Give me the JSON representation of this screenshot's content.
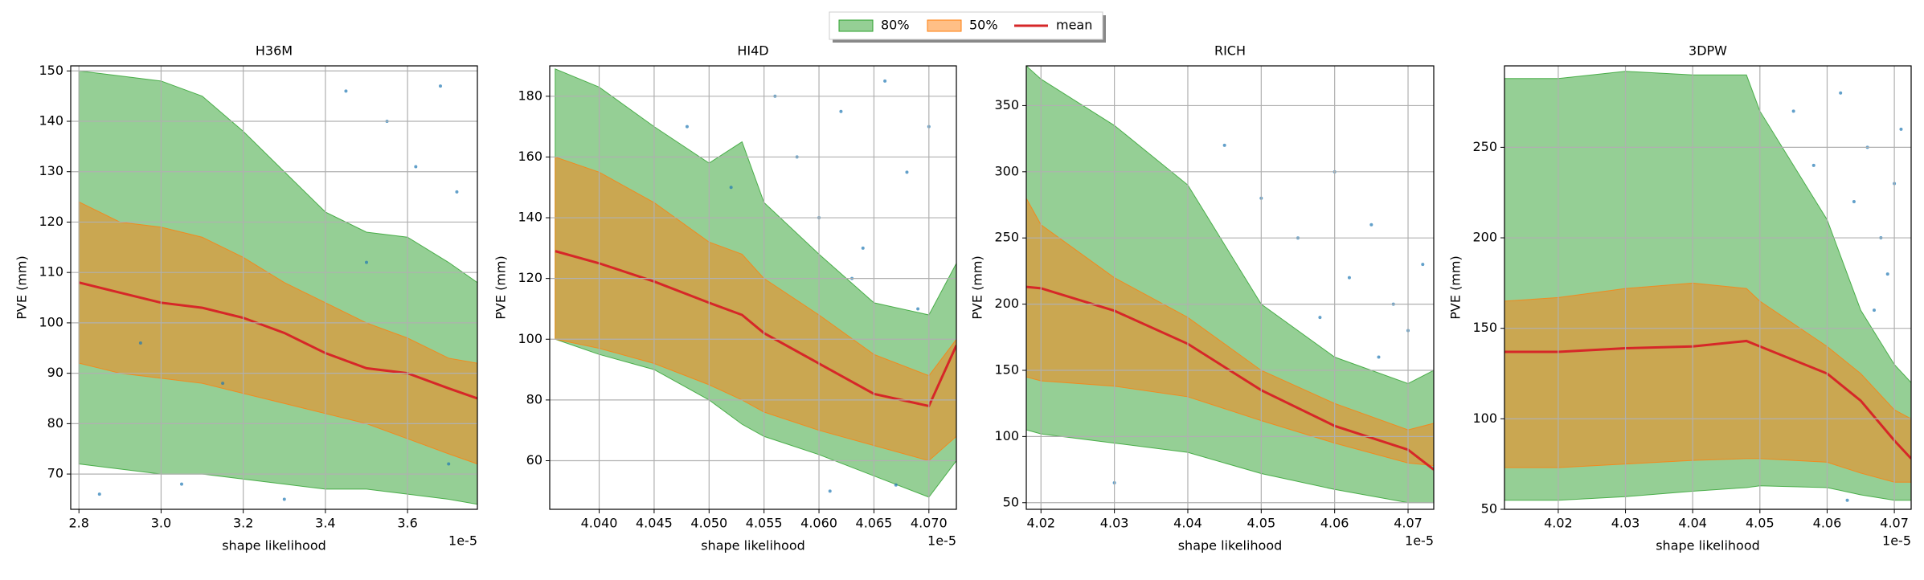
{
  "legend": {
    "position": "top",
    "entries": [
      {
        "name": "80%",
        "color": "#2ca02c"
      },
      {
        "name": "50%",
        "color": "#ff7f0e"
      },
      {
        "name": "mean",
        "color": "#d62728"
      }
    ]
  },
  "scatter_color": "#1f77b4",
  "chart_data": [
    {
      "type": "line",
      "title": "H36M",
      "xlabel": "shape likelihood",
      "ylabel": "PVE (mm)",
      "x_offset_label": "1e-5",
      "grid": true,
      "xlim": [
        2.78,
        3.77
      ],
      "ylim": [
        63,
        151
      ],
      "xticks": [
        2.8,
        {
          "value": 3,
          "label": "3.0"
        },
        3.2,
        3.4,
        3.6
      ],
      "yticks": [
        70,
        80,
        90,
        100,
        110,
        120,
        130,
        140,
        150
      ],
      "x": [
        2.8,
        2.9,
        3.0,
        3.1,
        3.2,
        3.3,
        3.4,
        3.5,
        3.6,
        3.7,
        3.77
      ],
      "band80": {
        "upper": [
          150,
          149,
          148,
          145,
          138,
          130,
          122,
          118,
          117,
          112,
          108
        ],
        "lower": [
          72,
          71,
          70,
          70,
          69,
          68,
          67,
          67,
          66,
          65,
          64
        ]
      },
      "band50": {
        "upper": [
          124,
          120,
          119,
          117,
          113,
          108,
          104,
          100,
          97,
          93,
          92
        ],
        "lower": [
          92,
          90,
          89,
          88,
          86,
          84,
          82,
          80,
          77,
          74,
          72
        ]
      },
      "mean": [
        108,
        106,
        104,
        103,
        101,
        98,
        94,
        91,
        90,
        87,
        85
      ],
      "scatter": {
        "x": [
          2.85,
          3.05,
          3.3,
          3.45,
          3.55,
          3.62,
          3.68,
          3.72,
          2.95,
          3.15,
          3.5,
          3.7
        ],
        "y": [
          66,
          68,
          65,
          146,
          140,
          131,
          147,
          126,
          96,
          88,
          112,
          72
        ]
      }
    },
    {
      "type": "line",
      "title": "HI4D",
      "xlabel": "shape likelihood",
      "ylabel": "PVE (mm)",
      "x_offset_label": "1e-5",
      "grid": true,
      "xlim": [
        4.0355,
        4.0725
      ],
      "ylim": [
        44,
        190
      ],
      "xticks": [
        {
          "value": 4.04,
          "label": "4.040"
        },
        4.045,
        {
          "value": 4.05,
          "label": "4.050"
        },
        4.055,
        {
          "value": 4.06,
          "label": "4.060"
        },
        4.065,
        {
          "value": 4.07,
          "label": "4.070"
        }
      ],
      "yticks": [
        60,
        80,
        100,
        120,
        140,
        160,
        180
      ],
      "x": [
        4.036,
        4.04,
        4.045,
        4.05,
        4.053,
        4.055,
        4.06,
        4.065,
        4.07,
        4.0725
      ],
      "band80": {
        "upper": [
          189,
          183,
          170,
          158,
          165,
          145,
          128,
          112,
          108,
          125
        ],
        "lower": [
          100,
          95,
          90,
          80,
          72,
          68,
          62,
          55,
          48,
          60
        ]
      },
      "band50": {
        "upper": [
          160,
          155,
          145,
          132,
          128,
          120,
          108,
          95,
          88,
          100
        ],
        "lower": [
          100,
          97,
          92,
          85,
          80,
          76,
          70,
          65,
          60,
          68
        ]
      },
      "mean": [
        129,
        125,
        119,
        112,
        108,
        102,
        92,
        82,
        78,
        98
      ],
      "scatter": {
        "x": [
          4.048,
          4.052,
          4.056,
          4.058,
          4.06,
          4.062,
          4.064,
          4.066,
          4.068,
          4.07,
          4.061,
          4.067,
          4.063,
          4.069
        ],
        "y": [
          170,
          150,
          180,
          160,
          140,
          175,
          130,
          185,
          155,
          170,
          50,
          52,
          120,
          110
        ]
      }
    },
    {
      "type": "line",
      "title": "RICH",
      "xlabel": "shape likelihood",
      "ylabel": "PVE (mm)",
      "x_offset_label": "1e-5",
      "grid": true,
      "xlim": [
        4.018,
        4.0735
      ],
      "ylim": [
        45,
        380
      ],
      "xticks": [
        4.02,
        4.03,
        4.04,
        4.05,
        4.06,
        4.07
      ],
      "yticks": [
        50,
        100,
        150,
        200,
        250,
        300,
        350
      ],
      "x": [
        4.018,
        4.02,
        4.03,
        4.04,
        4.05,
        4.06,
        4.07,
        4.0735
      ],
      "band80": {
        "upper": [
          380,
          370,
          335,
          290,
          200,
          160,
          140,
          150
        ],
        "lower": [
          105,
          102,
          95,
          88,
          72,
          60,
          50,
          50
        ]
      },
      "band50": {
        "upper": [
          280,
          260,
          220,
          190,
          150,
          125,
          105,
          110
        ],
        "lower": [
          145,
          142,
          138,
          130,
          112,
          95,
          80,
          78
        ]
      },
      "mean": [
        213,
        212,
        195,
        170,
        135,
        108,
        90,
        75
      ],
      "scatter": {
        "x": [
          4.045,
          4.05,
          4.055,
          4.06,
          4.062,
          4.065,
          4.068,
          4.07,
          4.072,
          4.058,
          4.066,
          4.03
        ],
        "y": [
          320,
          280,
          250,
          300,
          220,
          260,
          200,
          180,
          230,
          190,
          160,
          65
        ]
      }
    },
    {
      "type": "line",
      "title": "3DPW",
      "xlabel": "shape likelihood",
      "ylabel": "PVE (mm)",
      "x_offset_label": "1e-5",
      "grid": true,
      "xlim": [
        4.012,
        4.0725
      ],
      "ylim": [
        50,
        295
      ],
      "xticks": [
        4.02,
        4.03,
        4.04,
        4.05,
        4.06,
        4.07
      ],
      "yticks": [
        50,
        100,
        150,
        200,
        250
      ],
      "x": [
        4.012,
        4.02,
        4.03,
        4.04,
        4.048,
        4.05,
        4.06,
        4.065,
        4.07,
        4.0725
      ],
      "band80": {
        "upper": [
          288,
          288,
          292,
          290,
          290,
          270,
          210,
          160,
          130,
          120
        ],
        "lower": [
          55,
          55,
          57,
          60,
          62,
          63,
          62,
          58,
          55,
          55
        ]
      },
      "band50": {
        "upper": [
          165,
          167,
          172,
          175,
          172,
          165,
          140,
          125,
          105,
          100
        ],
        "lower": [
          73,
          73,
          75,
          77,
          78,
          78,
          76,
          70,
          65,
          65
        ]
      },
      "mean": [
        137,
        137,
        139,
        140,
        143,
        140,
        125,
        110,
        88,
        78
      ],
      "scatter": {
        "x": [
          4.055,
          4.058,
          4.062,
          4.064,
          4.066,
          4.068,
          4.07,
          4.071,
          4.069,
          4.067,
          4.063
        ],
        "y": [
          270,
          240,
          280,
          220,
          250,
          200,
          230,
          260,
          180,
          160,
          55
        ]
      }
    }
  ]
}
